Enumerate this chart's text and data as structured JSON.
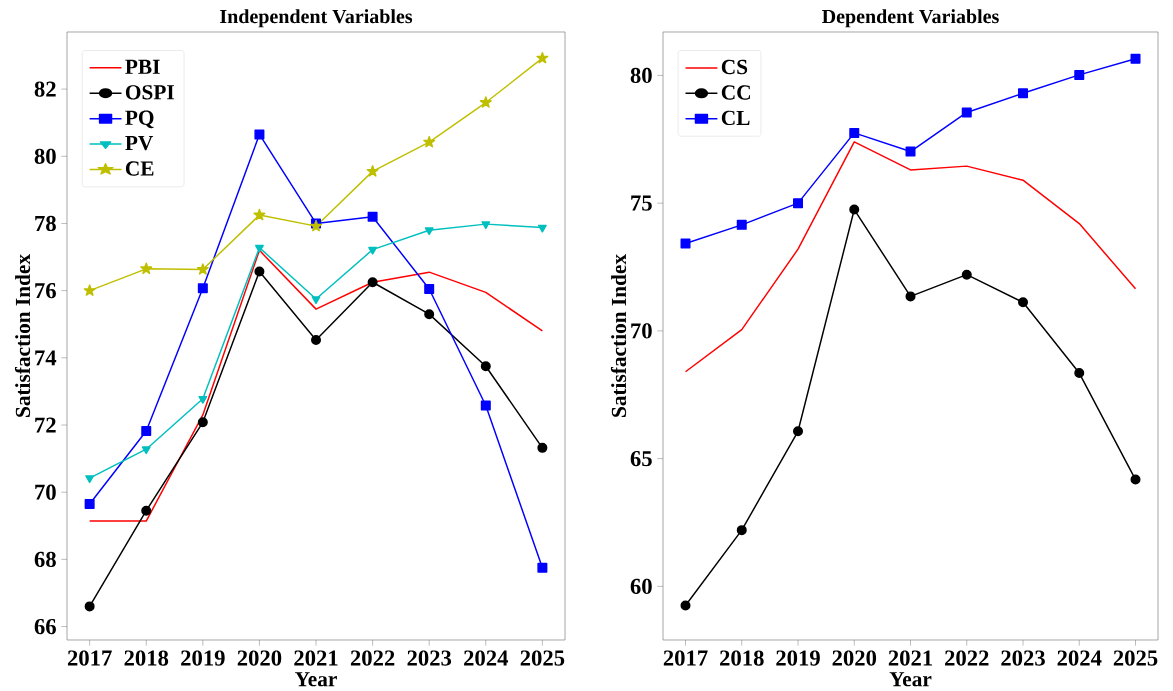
{
  "chart_data": [
    {
      "type": "line",
      "title": "Independent Variables",
      "xlabel": "Year",
      "ylabel": "Satisfaction Index",
      "x": [
        2017,
        2018,
        2019,
        2020,
        2021,
        2022,
        2023,
        2024,
        2025
      ],
      "xlim": [
        2016.6,
        2025.4
      ],
      "ylim": [
        65.6,
        83.7
      ],
      "xticks": [
        2017,
        2018,
        2019,
        2020,
        2021,
        2022,
        2023,
        2024,
        2025
      ],
      "yticks": [
        66,
        68,
        70,
        72,
        74,
        76,
        78,
        80,
        82
      ],
      "legend": "top left",
      "series": [
        {
          "name": "PBI",
          "color": "#ff0000",
          "marker": "none",
          "values": [
            69.14,
            69.14,
            72.3,
            77.2,
            75.45,
            76.25,
            76.55,
            75.95,
            74.8
          ]
        },
        {
          "name": "OSPI",
          "color": "#000000",
          "marker": "circle",
          "values": [
            66.6,
            69.45,
            72.08,
            76.57,
            74.53,
            76.25,
            75.3,
            73.75,
            71.32
          ]
        },
        {
          "name": "PQ",
          "color": "#0000ff",
          "marker": "square",
          "values": [
            69.65,
            71.82,
            76.07,
            80.65,
            78.0,
            78.2,
            76.05,
            72.58,
            67.75
          ]
        },
        {
          "name": "PV",
          "color": "#00bfbf",
          "marker": "triangle",
          "values": [
            70.42,
            71.28,
            72.78,
            77.28,
            75.75,
            77.22,
            77.8,
            77.98,
            77.88
          ]
        },
        {
          "name": "CE",
          "color": "#bfbf00",
          "marker": "star",
          "values": [
            76.0,
            76.65,
            76.63,
            78.25,
            77.92,
            79.55,
            80.42,
            81.6,
            82.92
          ]
        }
      ]
    },
    {
      "type": "line",
      "title": "Dependent Variables",
      "xlabel": "Year",
      "ylabel": "Satisfaction Index",
      "x": [
        2017,
        2018,
        2019,
        2020,
        2021,
        2022,
        2023,
        2024,
        2025
      ],
      "xlim": [
        2016.6,
        2025.4
      ],
      "ylim": [
        57.9,
        81.7
      ],
      "xticks": [
        2017,
        2018,
        2019,
        2020,
        2021,
        2022,
        2023,
        2024,
        2025
      ],
      "yticks": [
        60,
        65,
        70,
        75,
        80
      ],
      "legend": "top left",
      "series": [
        {
          "name": "CS",
          "color": "#ff0000",
          "marker": "none",
          "values": [
            68.4,
            70.05,
            73.2,
            77.4,
            76.3,
            76.45,
            75.9,
            74.2,
            71.65
          ]
        },
        {
          "name": "CC",
          "color": "#000000",
          "marker": "circle",
          "values": [
            59.25,
            62.2,
            66.07,
            74.75,
            71.35,
            72.2,
            71.12,
            68.35,
            64.18
          ]
        },
        {
          "name": "CL",
          "color": "#0000ff",
          "marker": "square",
          "values": [
            73.42,
            74.15,
            75.0,
            77.75,
            77.02,
            78.55,
            79.3,
            80.02,
            80.65
          ]
        }
      ]
    }
  ]
}
